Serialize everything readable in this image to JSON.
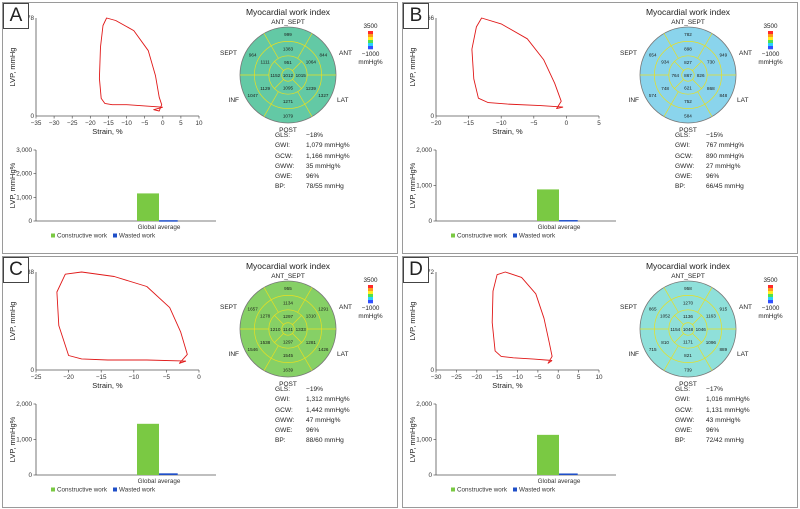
{
  "common": {
    "title": "Myocardial work index",
    "bullseye_labels": {
      "ant_sept": "ANT_SEPT",
      "ant": "ANT",
      "lat": "LAT",
      "post": "POST",
      "inf": "INF",
      "sept": "SEPT"
    },
    "scale_max": "3500",
    "scale_min": "−1000",
    "scale_unit": "mmHg%",
    "loop_y_label": "LVP, mmHg",
    "loop_x_label": "Strain, %",
    "bar_y_label": "LVP, mmHg%",
    "bar_category": "Global average",
    "legend_constructive": "Constructive work",
    "legend_wasted": "Wasted work",
    "stat_labels": {
      "gls": "GLS:",
      "gwi": "GWI:",
      "gcw": "GCW:",
      "gww": "GWW:",
      "gwe": "GWE:",
      "bp": "BP:"
    },
    "colors": {
      "loop": "#e01818",
      "constructive": "#7ac943",
      "wasted": "#1f4fc8",
      "bullseye_fill": "#7dcc8a",
      "segment_line": "#e8e020"
    }
  },
  "panels": [
    {
      "letter": "A",
      "stats": {
        "gls": "−18%",
        "gwi": "1,079 mmHg%",
        "gcw": "1,166 mmHg%",
        "gww": "35 mmHg%",
        "gwe": "96%",
        "bp": "78/55 mmHg"
      },
      "bullseye_fill": "#63c9a5",
      "segment_values": [
        "999",
        "844",
        "1327",
        "1079",
        "1047",
        "964",
        "1383",
        "1064",
        "1239",
        "1271",
        "1129",
        "1111",
        "951",
        "1015",
        "1095",
        "1152",
        "1012"
      ],
      "chart_data": [
        {
          "type": "line",
          "title": "",
          "xlabel": "Strain, %",
          "ylabel": "LVP, mmHg",
          "xlim": [
            -35,
            10
          ],
          "ylim": [
            0,
            78
          ],
          "xticks": [
            -35,
            -30,
            -25,
            -20,
            -15,
            -10,
            -5,
            0,
            5,
            10
          ],
          "yticks": [
            0,
            78
          ],
          "series": [
            {
              "name": "pressure-strain loop",
              "points": [
                [
                  0,
                  7
                ],
                [
                  -5,
                  8
                ],
                [
                  -10,
                  9
                ],
                [
                  -14,
                  9
                ],
                [
                  -16,
                  10
                ],
                [
                  -17,
                  14
                ],
                [
                  -17.5,
                  30
                ],
                [
                  -17.2,
                  55
                ],
                [
                  -16.5,
                  72
                ],
                [
                  -15.5,
                  78
                ],
                [
                  -13,
                  76
                ],
                [
                  -8,
                  68
                ],
                [
                  -4,
                  52
                ],
                [
                  -2,
                  32
                ],
                [
                  -1,
                  15
                ],
                [
                  -0.3,
                  9
                ],
                [
                  -1,
                  4
                ],
                [
                  -2.5,
                  5
                ],
                [
                  0,
                  7
                ]
              ]
            }
          ]
        },
        {
          "type": "bar",
          "title": "",
          "xlabel": "",
          "ylabel": "LVP, mmHg%",
          "categories": [
            "Global average"
          ],
          "ylim": [
            0,
            3000
          ],
          "yticks": [
            0,
            1000,
            2000,
            3000
          ],
          "series": [
            {
              "name": "Constructive work",
              "values": [
                1166
              ]
            },
            {
              "name": "Wasted work",
              "values": [
                35
              ]
            }
          ]
        }
      ]
    },
    {
      "letter": "B",
      "stats": {
        "gls": "−15%",
        "gwi": "767 mmHg%",
        "gcw": "890 mmHg%",
        "gww": "27 mmHg%",
        "gwe": "96%",
        "bp": "66/45 mmHg"
      },
      "bullseye_fill": "#8ad4ec",
      "segment_values": [
        "782",
        "949",
        "848",
        "584",
        "574",
        "654",
        "898",
        "730",
        "868",
        "752",
        "748",
        "934",
        "827",
        "826",
        "621",
        "764",
        "867"
      ],
      "chart_data": [
        {
          "type": "line",
          "title": "",
          "xlabel": "Strain, %",
          "ylabel": "LVP, mmHg",
          "xlim": [
            -20,
            5
          ],
          "ylim": [
            0,
            66
          ],
          "xticks": [
            -20,
            -15,
            -10,
            -5,
            0,
            5
          ],
          "yticks": [
            0,
            66
          ],
          "series": [
            {
              "name": "pressure-strain loop",
              "points": [
                [
                  -0.5,
                  6
                ],
                [
                  -4,
                  7
                ],
                [
                  -9,
                  8
                ],
                [
                  -12,
                  9
                ],
                [
                  -13.5,
                  12
                ],
                [
                  -14.2,
                  25
                ],
                [
                  -14.5,
                  45
                ],
                [
                  -13.8,
                  60
                ],
                [
                  -13,
                  66
                ],
                [
                  -10,
                  62
                ],
                [
                  -6,
                  52
                ],
                [
                  -3.5,
                  38
                ],
                [
                  -1.8,
                  22
                ],
                [
                  -0.8,
                  10
                ],
                [
                  -1.5,
                  5
                ],
                [
                  -0.5,
                  6
                ]
              ]
            }
          ]
        },
        {
          "type": "bar",
          "title": "",
          "xlabel": "",
          "ylabel": "LVP, mmHg%",
          "categories": [
            "Global average"
          ],
          "ylim": [
            0,
            2000
          ],
          "yticks": [
            0,
            1000,
            2000
          ],
          "series": [
            {
              "name": "Constructive work",
              "values": [
                890
              ]
            },
            {
              "name": "Wasted work",
              "values": [
                27
              ]
            }
          ]
        }
      ]
    },
    {
      "letter": "C",
      "stats": {
        "gls": "−19%",
        "gwi": "1,312 mmHg%",
        "gcw": "1,442 mmHg%",
        "gww": "47 mmHg%",
        "gwe": "96%",
        "bp": "88/60 mmHg"
      },
      "bullseye_fill": "#86d066",
      "segment_values": [
        "955",
        "1291",
        "1426",
        "1639",
        "1546",
        "1657",
        "1134",
        "1310",
        "1281",
        "1545",
        "1538",
        "1278",
        "1297",
        "1333",
        "1297",
        "1210",
        "1141"
      ],
      "chart_data": [
        {
          "type": "line",
          "title": "",
          "xlabel": "Strain, %",
          "ylabel": "LVP, mmHg",
          "xlim": [
            -25,
            0
          ],
          "ylim": [
            0,
            88
          ],
          "xticks": [
            -25,
            -20,
            -15,
            -10,
            -5,
            0
          ],
          "yticks": [
            0,
            88
          ],
          "series": [
            {
              "name": "pressure-strain loop",
              "points": [
                [
                  -2,
                  8
                ],
                [
                  -8,
                  9
                ],
                [
                  -14,
                  9
                ],
                [
                  -18,
                  10
                ],
                [
                  -20,
                  13
                ],
                [
                  -21.5,
                  40
                ],
                [
                  -21.8,
                  70
                ],
                [
                  -20.5,
                  86
                ],
                [
                  -18,
                  88
                ],
                [
                  -13,
                  84
                ],
                [
                  -8,
                  75
                ],
                [
                  -4.5,
                  56
                ],
                [
                  -2.8,
                  34
                ],
                [
                  -1.8,
                  14
                ],
                [
                  -3,
                  6
                ],
                [
                  -2,
                  8
                ]
              ]
            }
          ]
        },
        {
          "type": "bar",
          "title": "",
          "xlabel": "",
          "ylabel": "LVP, mmHg%",
          "categories": [
            "Global average"
          ],
          "ylim": [
            0,
            2000
          ],
          "yticks": [
            0,
            1000,
            2000
          ],
          "series": [
            {
              "name": "Constructive work",
              "values": [
                1442
              ]
            },
            {
              "name": "Wasted work",
              "values": [
                47
              ]
            }
          ]
        }
      ]
    },
    {
      "letter": "D",
      "stats": {
        "gls": "−17%",
        "gwi": "1,016 mmHg%",
        "gcw": "1,131 mmHg%",
        "gww": "43 mmHg%",
        "gwe": "96%",
        "bp": "72/42 mmHg"
      },
      "bullseye_fill": "#8fe0da",
      "segment_values": [
        "958",
        "915",
        "889",
        "739",
        "715",
        "865",
        "1270",
        "1163",
        "1096",
        "821",
        "810",
        "1052",
        "1136",
        "1046",
        "1171",
        "1154",
        "1048"
      ],
      "chart_data": [
        {
          "type": "line",
          "title": "",
          "xlabel": "Strain, %",
          "ylabel": "LVP, mmHg",
          "xlim": [
            -30,
            10
          ],
          "ylim": [
            0,
            72
          ],
          "xticks": [
            -30,
            -25,
            -20,
            -15,
            -10,
            -5,
            0,
            5,
            10
          ],
          "yticks": [
            0,
            72
          ],
          "series": [
            {
              "name": "pressure-strain loop",
              "points": [
                [
                  -1.5,
                  7
                ],
                [
                  -6,
                  8
                ],
                [
                  -11,
                  9
                ],
                [
                  -14,
                  10
                ],
                [
                  -15.5,
                  14
                ],
                [
                  -16.2,
                  35
                ],
                [
                  -16,
                  58
                ],
                [
                  -15,
                  70
                ],
                [
                  -13,
                  72
                ],
                [
                  -9,
                  68
                ],
                [
                  -5.5,
                  56
                ],
                [
                  -3.5,
                  38
                ],
                [
                  -2.2,
                  20
                ],
                [
                  -1.5,
                  10
                ],
                [
                  -2.5,
                  5
                ],
                [
                  -1.5,
                  7
                ]
              ]
            }
          ]
        },
        {
          "type": "bar",
          "title": "",
          "xlabel": "",
          "ylabel": "LVP, mmHg%",
          "categories": [
            "Global average"
          ],
          "ylim": [
            0,
            2000
          ],
          "yticks": [
            0,
            1000,
            2000
          ],
          "series": [
            {
              "name": "Constructive work",
              "values": [
                1131
              ]
            },
            {
              "name": "Wasted work",
              "values": [
                43
              ]
            }
          ]
        }
      ]
    }
  ]
}
